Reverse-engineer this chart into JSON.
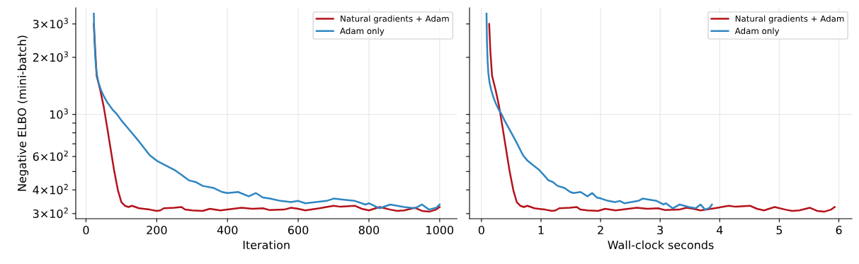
{
  "chart_data": [
    {
      "type": "line",
      "xlabel": "Iteration",
      "ylabel": "Negative ELBO (mini-batch)",
      "log": "y",
      "grid": true,
      "legend": "top right",
      "xlim": [
        -29,
        1049
      ],
      "xticks": [
        0,
        200,
        400,
        600,
        800,
        1000
      ],
      "ylim": [
        282,
        3650
      ],
      "yticks": [
        {
          "value": 300,
          "label": "3×10$^{2}$"
        },
        {
          "value": 400,
          "label": "4×10$^{2}$"
        },
        {
          "value": 500,
          "label": null
        },
        {
          "value": 600,
          "label": "6×10$^{2}$"
        },
        {
          "value": 700,
          "label": null
        },
        {
          "value": 800,
          "label": null
        },
        {
          "value": 900,
          "label": null
        },
        {
          "value": 1000,
          "label": "10$^{3}$"
        },
        {
          "value": 2000,
          "label": "2×10$^{3}$"
        },
        {
          "value": 3000,
          "label": "3×10$^{3}$"
        }
      ],
      "series": [
        {
          "name": "Natural gradients + Adam",
          "color": "#b5121b",
          "x": [
            22,
            30,
            40,
            50,
            60,
            70,
            80,
            90,
            100,
            110,
            120,
            130,
            150,
            180,
            200,
            210,
            220,
            250,
            270,
            280,
            300,
            330,
            350,
            380,
            400,
            440,
            470,
            500,
            520,
            560,
            580,
            600,
            620,
            660,
            700,
            720,
            760,
            780,
            800,
            830,
            860,
            880,
            900,
            930,
            950,
            970,
            990,
            1000
          ],
          "values": [
            3000,
            1600,
            1350,
            1100,
            850,
            650,
            500,
            400,
            345,
            330,
            325,
            330,
            320,
            315,
            310,
            312,
            320,
            322,
            325,
            315,
            312,
            310,
            318,
            312,
            315,
            322,
            318,
            320,
            313,
            315,
            322,
            318,
            312,
            320,
            330,
            326,
            330,
            318,
            312,
            325,
            315,
            310,
            312,
            322,
            310,
            307,
            315,
            325
          ]
        },
        {
          "name": "Adam only",
          "color": "#2e86c1",
          "x": [
            22,
            24,
            27,
            30,
            35,
            42,
            50,
            60,
            75,
            88,
            100,
            120,
            150,
            180,
            200,
            220,
            250,
            270,
            290,
            310,
            330,
            360,
            385,
            400,
            430,
            460,
            480,
            500,
            520,
            550,
            580,
            600,
            620,
            650,
            680,
            700,
            730,
            760,
            790,
            800,
            830,
            860,
            880,
            900,
            930,
            950,
            970,
            990,
            1000
          ],
          "values": [
            3400,
            2400,
            1900,
            1650,
            1480,
            1350,
            1250,
            1160,
            1060,
            1000,
            930,
            840,
            720,
            610,
            570,
            545,
            510,
            480,
            450,
            440,
            420,
            410,
            390,
            385,
            390,
            370,
            385,
            365,
            360,
            350,
            345,
            350,
            340,
            345,
            350,
            360,
            355,
            350,
            335,
            340,
            320,
            335,
            330,
            325,
            320,
            335,
            315,
            322,
            335
          ]
        }
      ]
    },
    {
      "type": "line",
      "xlabel": "Wall-clock seconds",
      "log": "y",
      "grid": true,
      "legend": "top right",
      "tick_labels": "x",
      "xlim": [
        -0.2,
        6.22
      ],
      "xticks": [
        0,
        1,
        2,
        3,
        4,
        5,
        6
      ],
      "ylim": [
        282,
        3650
      ],
      "yticks": [
        {
          "value": 300,
          "label": null
        },
        {
          "value": 400,
          "label": null
        },
        {
          "value": 500,
          "label": null
        },
        {
          "value": 600,
          "label": null
        },
        {
          "value": 700,
          "label": null
        },
        {
          "value": 800,
          "label": null
        },
        {
          "value": 900,
          "label": null
        },
        {
          "value": 1000,
          "label": null
        },
        {
          "value": 2000,
          "label": null
        },
        {
          "value": 3000,
          "label": null
        }
      ],
      "series": [
        {
          "name": "Natural gradients + Adam",
          "color": "#b5121b",
          "x": [
            0.13,
            0.148,
            0.178,
            0.237,
            0.297,
            0.356,
            0.415,
            0.474,
            0.534,
            0.593,
            0.652,
            0.712,
            0.771,
            0.89,
            1.067,
            1.186,
            1.245,
            1.305,
            1.483,
            1.601,
            1.66,
            1.779,
            1.957,
            2.076,
            2.253,
            2.372,
            2.609,
            2.787,
            2.965,
            3.084,
            3.321,
            3.439,
            3.558,
            3.677,
            3.914,
            4.151,
            4.27,
            4.507,
            4.625,
            4.744,
            4.922,
            5.1,
            5.218,
            5.337,
            5.515,
            5.634,
            5.752,
            5.871,
            5.93
          ],
          "values": [
            3000,
            2200,
            1600,
            1350,
            1100,
            850,
            650,
            500,
            400,
            345,
            330,
            325,
            330,
            320,
            315,
            310,
            312,
            320,
            322,
            325,
            315,
            312,
            310,
            318,
            312,
            315,
            322,
            318,
            320,
            313,
            315,
            322,
            318,
            312,
            320,
            330,
            326,
            330,
            318,
            312,
            325,
            315,
            310,
            312,
            322,
            310,
            307,
            315,
            325
          ]
        },
        {
          "name": "Adam only",
          "color": "#2e86c1",
          "x": [
            0.085,
            0.093,
            0.104,
            0.116,
            0.135,
            0.163,
            0.194,
            0.232,
            0.29,
            0.341,
            0.387,
            0.464,
            0.581,
            0.697,
            0.774,
            0.851,
            0.968,
            1.045,
            1.122,
            1.2,
            1.277,
            1.393,
            1.49,
            1.548,
            1.664,
            1.78,
            1.858,
            1.935,
            2.012,
            2.129,
            2.245,
            2.322,
            2.399,
            2.516,
            2.632,
            2.709,
            2.825,
            2.941,
            3.057,
            3.096,
            3.212,
            3.328,
            3.406,
            3.483,
            3.599,
            3.677,
            3.754,
            3.831,
            3.87
          ],
          "values": [
            3400,
            2400,
            1900,
            1650,
            1480,
            1350,
            1250,
            1160,
            1060,
            1000,
            930,
            840,
            720,
            610,
            570,
            545,
            510,
            480,
            450,
            440,
            420,
            410,
            390,
            385,
            390,
            370,
            385,
            365,
            360,
            350,
            345,
            350,
            340,
            345,
            350,
            360,
            355,
            350,
            335,
            340,
            320,
            335,
            330,
            325,
            320,
            335,
            315,
            322,
            335
          ]
        }
      ]
    }
  ]
}
